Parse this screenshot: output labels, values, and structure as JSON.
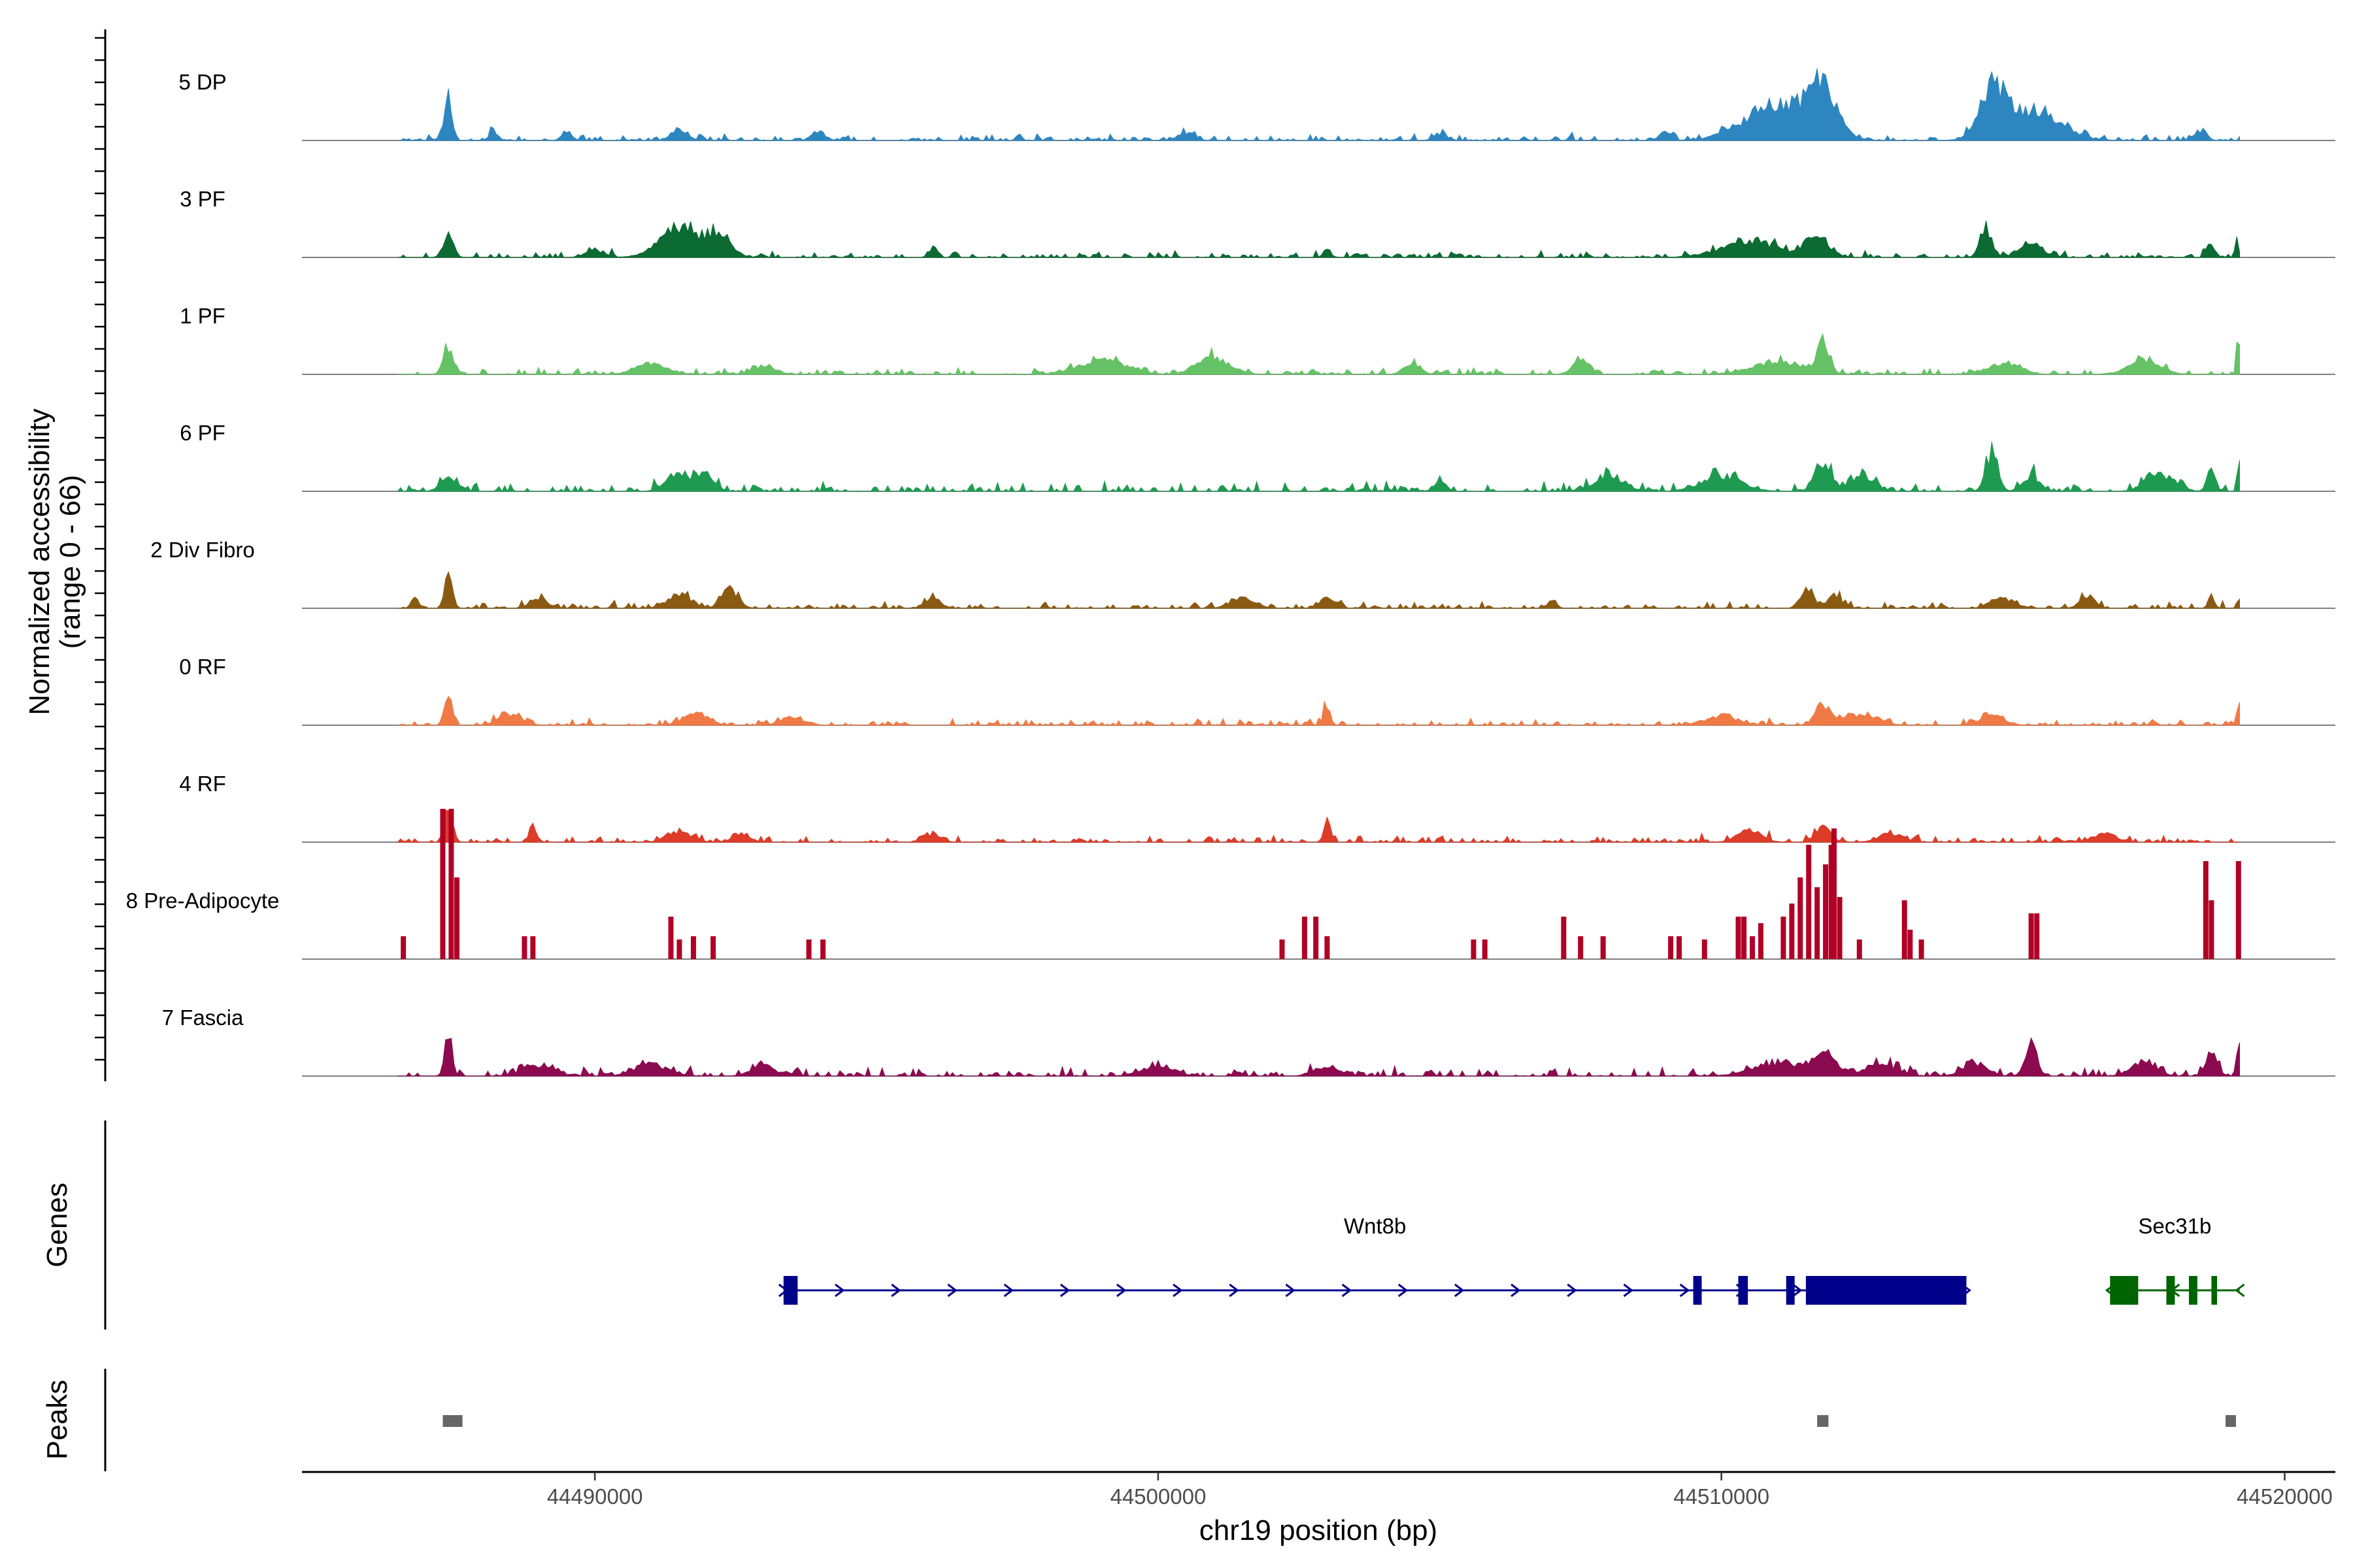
{
  "chart_data": {
    "type": "area",
    "title": "",
    "ylabel": "Normalized accessibility",
    "ylabel_range": "(range 0 - 66)",
    "ylim": [
      0,
      66
    ],
    "xlabel": "chr19 position (bp)",
    "xlim": [
      44484800,
      44520900
    ],
    "region": {
      "start": 44486500,
      "end": 44519200
    },
    "x_ticks": [
      44490000,
      44500000,
      44510000,
      44520000
    ],
    "x_tick_labels": [
      "44490000",
      "44500000",
      "44510000",
      "44520000"
    ],
    "tracks": [
      {
        "name": "5 DP",
        "color": "#2E86C1",
        "peaks": [
          [
            44487400,
            30,
            90
          ],
          [
            44488200,
            6,
            100
          ],
          [
            44489500,
            5,
            120
          ],
          [
            44491500,
            6,
            200
          ],
          [
            44494000,
            5,
            150
          ],
          [
            44500500,
            5,
            200
          ],
          [
            44505000,
            4,
            150
          ],
          [
            44509000,
            5,
            150
          ],
          [
            44511000,
            22,
            800
          ],
          [
            44511800,
            30,
            350
          ],
          [
            44514800,
            30,
            300
          ],
          [
            44515500,
            18,
            700
          ],
          [
            44518500,
            6,
            150
          ]
        ],
        "noise": 3,
        "seed": 11
      },
      {
        "name": "3 PF",
        "color": "#0B6B33",
        "peaks": [
          [
            44487400,
            16,
            120
          ],
          [
            44490000,
            5,
            200
          ],
          [
            44491500,
            18,
            500
          ],
          [
            44492200,
            12,
            300
          ],
          [
            44496000,
            5,
            100
          ],
          [
            44503000,
            4,
            100
          ],
          [
            44510500,
            10,
            700
          ],
          [
            44511700,
            12,
            300
          ],
          [
            44514700,
            18,
            150
          ],
          [
            44515500,
            8,
            300
          ],
          [
            44518700,
            7,
            100
          ],
          [
            44519150,
            14,
            40
          ]
        ],
        "noise": 3,
        "seed": 23
      },
      {
        "name": "1 PF",
        "color": "#66C266",
        "peaks": [
          [
            44487400,
            18,
            120
          ],
          [
            44491000,
            6,
            400
          ],
          [
            44493000,
            5,
            300
          ],
          [
            44499000,
            8,
            600
          ],
          [
            44501000,
            10,
            400
          ],
          [
            44504500,
            7,
            200
          ],
          [
            44507500,
            10,
            200
          ],
          [
            44511000,
            8,
            600
          ],
          [
            44511800,
            18,
            150
          ],
          [
            44515000,
            7,
            400
          ],
          [
            44517500,
            8,
            400
          ],
          [
            44519180,
            26,
            40
          ]
        ],
        "noise": 3,
        "seed": 37
      },
      {
        "name": "6 PF",
        "color": "#1E9B50",
        "peaks": [
          [
            44487400,
            8,
            200
          ],
          [
            44491500,
            12,
            300
          ],
          [
            44492000,
            9,
            200
          ],
          [
            44505000,
            6,
            150
          ],
          [
            44508000,
            8,
            400
          ],
          [
            44510000,
            9,
            500
          ],
          [
            44511800,
            18,
            200
          ],
          [
            44512500,
            10,
            300
          ],
          [
            44514800,
            22,
            150
          ],
          [
            44515500,
            10,
            200
          ],
          [
            44517800,
            10,
            350
          ],
          [
            44518700,
            14,
            100
          ],
          [
            44519180,
            22,
            40
          ]
        ],
        "noise": 4,
        "seed": 41
      },
      {
        "name": "2 Div Fibro",
        "color": "#8B5A12",
        "peaks": [
          [
            44486800,
            8,
            80
          ],
          [
            44487400,
            28,
            90
          ],
          [
            44489000,
            6,
            200
          ],
          [
            44491500,
            8,
            300
          ],
          [
            44492400,
            12,
            200
          ],
          [
            44496000,
            6,
            200
          ],
          [
            44501500,
            6,
            300
          ],
          [
            44503000,
            6,
            200
          ],
          [
            44507000,
            6,
            100
          ],
          [
            44511500,
            12,
            150
          ],
          [
            44512000,
            7,
            200
          ],
          [
            44515000,
            6,
            300
          ],
          [
            44516500,
            6,
            200
          ],
          [
            44518700,
            7,
            80
          ],
          [
            44519180,
            6,
            40
          ]
        ],
        "noise": 3,
        "seed": 53
      },
      {
        "name": "0 RF",
        "color": "#F07A45",
        "peaks": [
          [
            44487400,
            22,
            100
          ],
          [
            44488500,
            6,
            300
          ],
          [
            44491800,
            7,
            300
          ],
          [
            44493500,
            5,
            300
          ],
          [
            44503000,
            12,
            80
          ],
          [
            44510000,
            6,
            400
          ],
          [
            44511800,
            12,
            200
          ],
          [
            44512500,
            7,
            400
          ],
          [
            44514800,
            6,
            300
          ],
          [
            44519180,
            16,
            40
          ]
        ],
        "noise": 3,
        "seed": 67
      },
      {
        "name": "4 RF",
        "color": "#DC3C28",
        "peaks": [
          [
            44487400,
            22,
            100
          ],
          [
            44488900,
            10,
            90
          ],
          [
            44491500,
            6,
            300
          ],
          [
            44492600,
            6,
            200
          ],
          [
            44496000,
            5,
            200
          ],
          [
            44503000,
            16,
            80
          ],
          [
            44510500,
            7,
            300
          ],
          [
            44511800,
            9,
            200
          ],
          [
            44513000,
            5,
            300
          ],
          [
            44516800,
            5,
            300
          ]
        ],
        "noise": 3,
        "seed": 79
      },
      {
        "name": "8 Pre-Adipocyte",
        "color": "#B10026",
        "bars": [
          [
            44486600,
            14
          ],
          [
            44487300,
            92
          ],
          [
            44487450,
            92
          ],
          [
            44487550,
            50
          ],
          [
            44488750,
            14
          ],
          [
            44488900,
            14
          ],
          [
            44491350,
            26
          ],
          [
            44491500,
            12
          ],
          [
            44491750,
            14
          ],
          [
            44492100,
            14
          ],
          [
            44493800,
            12
          ],
          [
            44494050,
            12
          ],
          [
            44502200,
            12
          ],
          [
            44502600,
            26
          ],
          [
            44502800,
            26
          ],
          [
            44503000,
            14
          ],
          [
            44505600,
            12
          ],
          [
            44505800,
            12
          ],
          [
            44507200,
            26
          ],
          [
            44507500,
            14
          ],
          [
            44507900,
            14
          ],
          [
            44509100,
            14
          ],
          [
            44509250,
            14
          ],
          [
            44509700,
            12
          ],
          [
            44510300,
            26
          ],
          [
            44510400,
            26
          ],
          [
            44510550,
            14
          ],
          [
            44510700,
            22
          ],
          [
            44511100,
            26
          ],
          [
            44511250,
            34
          ],
          [
            44511400,
            50
          ],
          [
            44511550,
            70
          ],
          [
            44511700,
            44
          ],
          [
            44511850,
            58
          ],
          [
            44511950,
            70
          ],
          [
            44512000,
            80
          ],
          [
            44512100,
            38
          ],
          [
            44512450,
            12
          ],
          [
            44513250,
            36
          ],
          [
            44513350,
            18
          ],
          [
            44513550,
            12
          ],
          [
            44515500,
            28
          ],
          [
            44515600,
            28
          ],
          [
            44518600,
            60
          ],
          [
            44518700,
            36
          ],
          [
            44519180,
            60
          ]
        ]
      },
      {
        "name": "7 Fascia",
        "color": "#8B0A50",
        "peaks": [
          [
            44487400,
            24,
            90
          ],
          [
            44489000,
            6,
            400
          ],
          [
            44491000,
            7,
            400
          ],
          [
            44493000,
            6,
            300
          ],
          [
            44500000,
            6,
            400
          ],
          [
            44503000,
            6,
            300
          ],
          [
            44511000,
            8,
            600
          ],
          [
            44511800,
            12,
            300
          ],
          [
            44512800,
            7,
            400
          ],
          [
            44514500,
            8,
            300
          ],
          [
            44515500,
            18,
            150
          ],
          [
            44517500,
            8,
            300
          ],
          [
            44518700,
            12,
            150
          ],
          [
            44519180,
            22,
            40
          ]
        ],
        "noise": 4,
        "seed": 97
      }
    ],
    "genes_panel_title": "Genes",
    "genes": [
      {
        "name": "Wnt8b",
        "strand": "+",
        "color": "#00008B",
        "start": 44493350,
        "end": 44514350,
        "exons": [
          [
            44493350,
            44493600
          ],
          [
            44509500,
            44509650
          ],
          [
            44510300,
            44510470
          ],
          [
            44511150,
            44511300
          ],
          [
            44511500,
            44514350
          ]
        ]
      },
      {
        "name": "Sec31b",
        "strand": "-",
        "color": "#006400",
        "start": 44516900,
        "end": 44519200,
        "exons": [
          [
            44516900,
            44517400
          ],
          [
            44517900,
            44518050
          ],
          [
            44518300,
            44518450
          ],
          [
            44518700,
            44518800
          ]
        ]
      }
    ],
    "peaks_panel_title": "Peaks",
    "peak_regions": [
      [
        44487300,
        44487650
      ],
      [
        44511700,
        44511900
      ],
      [
        44518950,
        44519100
      ]
    ]
  }
}
